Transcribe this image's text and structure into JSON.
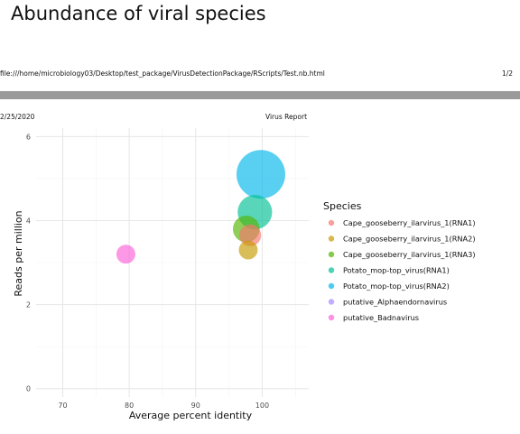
{
  "page": {
    "title": "Abundance of viral species",
    "file_path": "file:///home/microbiology03/Desktop/test_package/VirusDetectionPackage/RScripts/Test.nb.html",
    "page_number": "1/2",
    "date": "2/25/2020",
    "report_name": "Virus Report"
  },
  "chart_data": {
    "type": "scatter",
    "title": "",
    "xlabel": "Average percent identity",
    "ylabel": "Reads per million",
    "xlim": [
      66,
      107
    ],
    "ylim": [
      -0.2,
      6.2
    ],
    "xticks": [
      70,
      80,
      90,
      100
    ],
    "yticks": [
      0,
      2,
      4,
      6
    ],
    "grid": true,
    "legend": {
      "title": "Species",
      "position": "right"
    },
    "series": [
      {
        "name": "Cape_gooseberry_ilarvirus_1(RNA1)",
        "color": "#F8766D",
        "points": [
          {
            "x": 98.2,
            "y": 3.65,
            "size": 0.2
          }
        ]
      },
      {
        "name": "Cape_gooseberry_ilarvirus_1(RNA2)",
        "color": "#C49A00",
        "points": [
          {
            "x": 97.9,
            "y": 3.3,
            "size": 0.15
          }
        ]
      },
      {
        "name": "Cape_gooseberry_ilarvirus_1(RNA3)",
        "color": "#53B400",
        "points": [
          {
            "x": 97.6,
            "y": 3.8,
            "size": 0.3
          }
        ]
      },
      {
        "name": "Potato_mop-top_virus(RNA1)",
        "color": "#00C094",
        "points": [
          {
            "x": 98.9,
            "y": 4.2,
            "size": 0.5
          }
        ]
      },
      {
        "name": "Potato_mop-top_virus(RNA2)",
        "color": "#00B6EB",
        "points": [
          {
            "x": 99.8,
            "y": 5.1,
            "size": 1.0
          }
        ]
      },
      {
        "name": "putative_Alphaendornavirus",
        "color": "#A58AFF",
        "points": []
      },
      {
        "name": "putative_Badnavirus",
        "color": "#FB61D7",
        "points": [
          {
            "x": 79.5,
            "y": 3.2,
            "size": 0.15
          }
        ]
      }
    ]
  }
}
